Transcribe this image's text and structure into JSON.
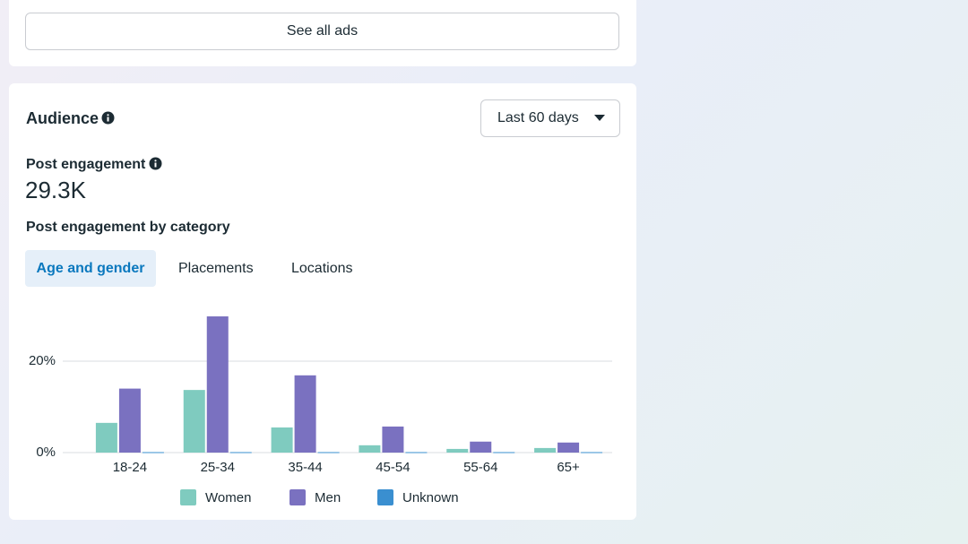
{
  "top_card": {
    "button": "See all ads"
  },
  "audience": {
    "title": "Audience",
    "date_range": "Last 60 days",
    "metric_label": "Post engagement",
    "metric_value": "29.3K",
    "breakdown_title": "Post engagement by category",
    "tabs": [
      "Age and gender",
      "Placements",
      "Locations"
    ]
  },
  "chart_data": {
    "type": "bar",
    "categories": [
      "18-24",
      "25-34",
      "35-44",
      "45-54",
      "55-64",
      "65+"
    ],
    "series": [
      {
        "name": "Women",
        "color": "#7fcbbf",
        "values": [
          6.5,
          13.7,
          5.5,
          1.6,
          0.8,
          1.0
        ]
      },
      {
        "name": "Men",
        "color": "#7a71c0",
        "values": [
          14,
          29.8,
          16.9,
          5.7,
          2.4,
          2.2
        ]
      },
      {
        "name": "Unknown",
        "color": "#3a8fd0",
        "values": [
          0.1,
          0.1,
          0.1,
          0.1,
          0.1,
          0.1
        ]
      }
    ],
    "ylim": [
      0,
      30
    ],
    "yticks": [
      {
        "value": 0,
        "label": "0%"
      },
      {
        "value": 20,
        "label": "20%"
      }
    ],
    "grid": true
  }
}
